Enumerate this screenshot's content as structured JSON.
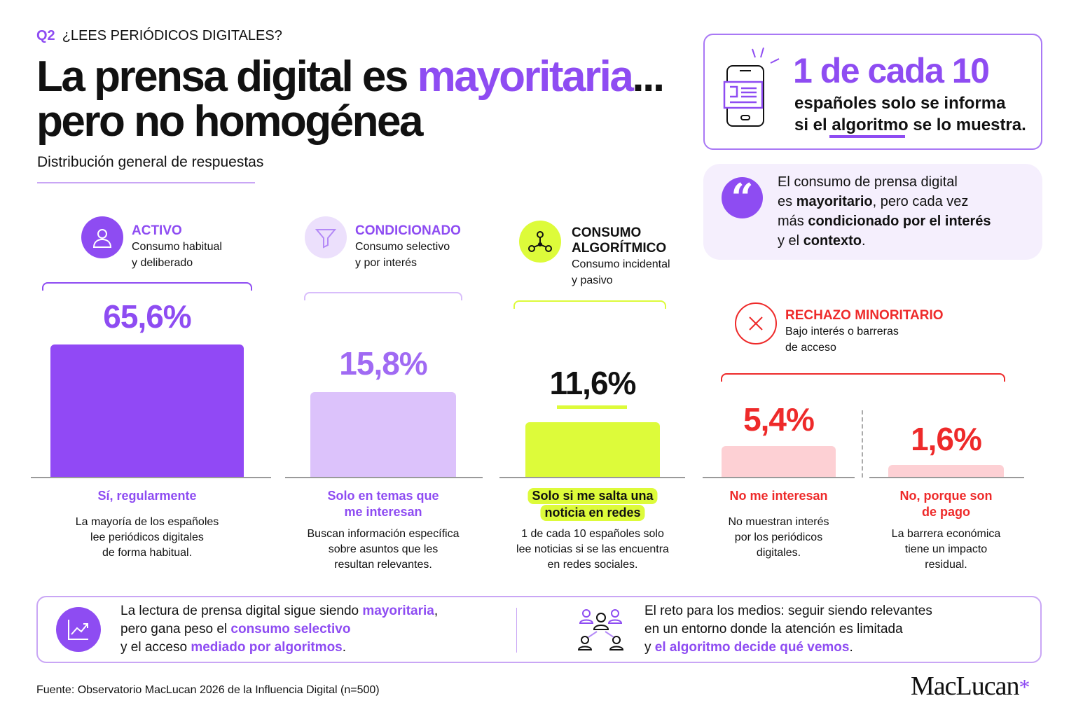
{
  "header": {
    "tag": "Q2",
    "question": "¿LEES PERIÓDICOS DIGITALES?",
    "title_a": "La prensa digital es ",
    "title_highlight": "mayoritaria",
    "title_b": "...",
    "title_line2": "pero no homogénea",
    "subtitle": "Distribución general de respuestas"
  },
  "highlight_box": {
    "big": "1 de cada 10",
    "line1": "españoles solo se informa",
    "line2_a": "si el ",
    "line2_underlined": "algoritmo",
    "line2_b": " se lo muestra.",
    "icon": "phone-news-icon"
  },
  "quote_box": {
    "icon": "quote-icon",
    "l1": "El consumo de prensa digital",
    "l2_a": "es ",
    "l2_b": "mayoritario",
    "l2_c": ", pero cada vez",
    "l3_a": "más ",
    "l3_b": "condicionado por el interés",
    "l4_a": "y el ",
    "l4_b": "contexto",
    "l4_c": "."
  },
  "categories": [
    {
      "title": "ACTIVO",
      "sub1": "Consumo habitual",
      "sub2": "y deliberado",
      "icon": "user-icon",
      "color": "#8e4cf2"
    },
    {
      "title": "CONDICIONADO",
      "sub1": "Consumo selectivo",
      "sub2": "y por interés",
      "icon": "funnel-icon",
      "color": "#8e4cf2"
    },
    {
      "title1": "CONSUMO",
      "title2": "ALGORÍTMICO",
      "sub1": "Consumo incidental",
      "sub2": "y pasivo",
      "icon": "network-icon",
      "color": "#111111"
    },
    {
      "title": "RECHAZO MINORITARIO",
      "sub1": "Bajo interés o barreras",
      "sub2": "de acceso",
      "icon": "close-icon",
      "color": "#ee2a2a"
    }
  ],
  "chart_data": {
    "type": "bar",
    "categories": [
      "Sí, regularmente",
      "Solo en temas que me interesan",
      "Solo si me salta una noticia en redes",
      "No me interesan",
      "No, porque son de pago"
    ],
    "values": [
      65.6,
      15.8,
      11.6,
      5.4,
      1.6
    ],
    "value_labels": [
      "65,6%",
      "15,8%",
      "11,6%",
      "5,4%",
      "1,6%"
    ],
    "label_lines": [
      [
        "Sí, regularmente"
      ],
      [
        "Solo en temas que",
        "me interesan"
      ],
      [
        "Solo si me salta una",
        "noticia en redes"
      ],
      [
        "No me interesan"
      ],
      [
        "No, porque son",
        "de pago"
      ]
    ],
    "descriptions": [
      [
        "La mayoría de los españoles",
        "lee periódicos digitales",
        "de forma habitual."
      ],
      [
        "Buscan información específica",
        "sobre asuntos que les",
        "resultan relevantes."
      ],
      [
        "1 de cada 10 españoles solo",
        "lee noticias si se las encuentra",
        "en redes sociales."
      ],
      [
        "No muestran interés",
        "por los periódicos",
        "digitales."
      ],
      [
        "La barrera económica",
        "tiene un impacto",
        "residual."
      ]
    ],
    "colors": [
      "#9149f5",
      "#dcc2fb",
      "#ddfb3a",
      "#fdd0d4",
      "#fdd0d4"
    ],
    "value_colors": [
      "#8e4cf2",
      "#a06af3",
      "#111111",
      "#ee2a2a",
      "#ee2a2a"
    ],
    "label_colors": [
      "#8e4cf2",
      "#8e4cf2",
      "#111111",
      "#ee2a2a",
      "#ee2a2a"
    ]
  },
  "footer_box": {
    "l1_a": "La lectura de prensa digital sigue siendo ",
    "l1_b": "mayoritaria",
    "l1_c": ",",
    "l2_a": "pero gana peso el ",
    "l2_b": "consumo selectivo",
    "l3_a": "y el acceso ",
    "l3_b": "mediado por algoritmos",
    "l3_c": ".",
    "r1": "El reto para los medios: seguir siendo relevantes",
    "r2": "en un entorno donde la atención es limitada",
    "r3_a": "y ",
    "r3_b": "el algoritmo decide qué vemos",
    "r3_c": "."
  },
  "source": "Fuente: Observatorio MacLucan 2026 de la Influencia Digital (n=500)",
  "logo": "MacLucan"
}
